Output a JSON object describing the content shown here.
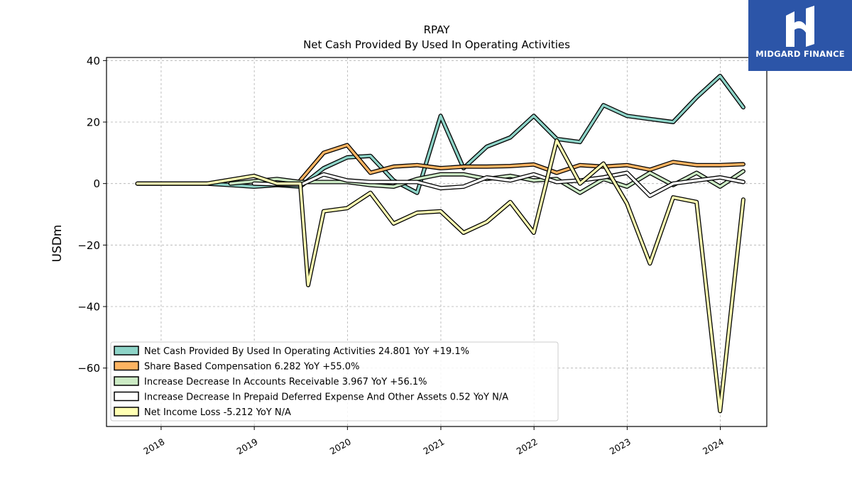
{
  "brand": {
    "name": "MIDGARD FINANCE"
  },
  "chart_data": {
    "type": "line",
    "title": "RPAY",
    "subtitle": "Net Cash Provided By Used In Operating Activities",
    "xlabel": "",
    "ylabel": "USDm",
    "xlim": [
      "2017-06-01",
      "2024-07-01"
    ],
    "ylim": [
      -79,
      41
    ],
    "yticks": [
      40,
      20,
      0,
      -20,
      -40,
      -60
    ],
    "ytick_labels": [
      "40",
      "20",
      "0",
      "−20",
      "−40",
      "−60"
    ],
    "xticks": [
      "2018-01-01",
      "2019-01-01",
      "2020-01-01",
      "2021-01-01",
      "2022-01-01",
      "2023-01-01",
      "2024-01-01"
    ],
    "xtick_labels": [
      "2018",
      "2019",
      "2020",
      "2021",
      "2022",
      "2023",
      "2024"
    ],
    "grid": true,
    "legend_position": "lower-left",
    "series": [
      {
        "name": "Net Cash Provided By Used In Operating Activities",
        "legend": "Net Cash Provided By Used In Operating Activities  24.801 YoY +19.1%",
        "color": "#8dd3c7",
        "points": [
          [
            "2017-09-30",
            0
          ],
          [
            "2018-06-30",
            0
          ],
          [
            "2018-09-30",
            -0.5
          ],
          [
            "2018-12-31",
            -1
          ],
          [
            "2019-03-31",
            -0.5
          ],
          [
            "2019-06-30",
            -1
          ],
          [
            "2019-09-30",
            5
          ],
          [
            "2019-12-31",
            8.5
          ],
          [
            "2020-03-31",
            9
          ],
          [
            "2020-06-30",
            1
          ],
          [
            "2020-09-30",
            -3
          ],
          [
            "2020-12-31",
            22
          ],
          [
            "2021-03-31",
            5
          ],
          [
            "2021-06-30",
            12
          ],
          [
            "2021-09-30",
            15
          ],
          [
            "2021-12-31",
            22
          ],
          [
            "2022-03-31",
            14.5
          ],
          [
            "2022-06-30",
            13.5
          ],
          [
            "2022-09-30",
            25.5
          ],
          [
            "2022-12-31",
            22
          ],
          [
            "2023-03-31",
            21
          ],
          [
            "2023-06-30",
            20
          ],
          [
            "2023-09-30",
            28
          ],
          [
            "2023-12-31",
            35
          ],
          [
            "2024-03-31",
            24.8
          ]
        ]
      },
      {
        "name": "Share Based Compensation",
        "legend": "Share Based Compensation  6.282 YoY +55.0%",
        "color": "#fdb462",
        "points": [
          [
            "2019-06-30",
            1
          ],
          [
            "2019-09-30",
            10
          ],
          [
            "2019-12-31",
            12.5
          ],
          [
            "2020-03-31",
            3.5
          ],
          [
            "2020-06-30",
            5.5
          ],
          [
            "2020-09-30",
            6
          ],
          [
            "2020-12-31",
            5
          ],
          [
            "2021-03-31",
            5.5
          ],
          [
            "2021-06-30",
            5.5
          ],
          [
            "2021-09-30",
            5.7
          ],
          [
            "2021-12-31",
            6.2
          ],
          [
            "2022-03-31",
            3.5
          ],
          [
            "2022-06-30",
            6
          ],
          [
            "2022-09-30",
            5.5
          ],
          [
            "2022-12-31",
            6
          ],
          [
            "2023-03-31",
            4.5
          ],
          [
            "2023-06-30",
            7
          ],
          [
            "2023-09-30",
            6
          ],
          [
            "2023-12-31",
            6
          ],
          [
            "2024-03-31",
            6.3
          ]
        ]
      },
      {
        "name": "Increase Decrease In Accounts Receivable",
        "legend": "Increase Decrease In Accounts Receivable  3.967 YoY +56.1%",
        "color": "#ccebc5",
        "points": [
          [
            "2018-09-30",
            0
          ],
          [
            "2019-03-31",
            1.5
          ],
          [
            "2019-06-30",
            0.5
          ],
          [
            "2019-09-30",
            0.5
          ],
          [
            "2019-12-31",
            0.5
          ],
          [
            "2020-03-31",
            -0.5
          ],
          [
            "2020-06-30",
            -1
          ],
          [
            "2020-09-30",
            1.5
          ],
          [
            "2020-12-31",
            3
          ],
          [
            "2021-03-31",
            3
          ],
          [
            "2021-06-30",
            1.5
          ],
          [
            "2021-09-30",
            2.5
          ],
          [
            "2021-12-31",
            1
          ],
          [
            "2022-03-31",
            1.5
          ],
          [
            "2022-06-30",
            -3
          ],
          [
            "2022-09-30",
            1.5
          ],
          [
            "2022-12-31",
            -1
          ],
          [
            "2023-03-31",
            3.5
          ],
          [
            "2023-06-30",
            -0.5
          ],
          [
            "2023-09-30",
            3.5
          ],
          [
            "2023-12-31",
            -1
          ],
          [
            "2024-03-31",
            4
          ]
        ]
      },
      {
        "name": "Increase Decrease In Prepaid Deferred Expense And Other Assets",
        "legend": "Increase Decrease In Prepaid Deferred Expense And Other Assets  0.52 YoY N/A",
        "color": "#ffffff",
        "points": [
          [
            "2018-12-31",
            0
          ],
          [
            "2019-06-30",
            -0.5
          ],
          [
            "2019-09-30",
            3
          ],
          [
            "2019-12-31",
            1
          ],
          [
            "2020-03-31",
            0.5
          ],
          [
            "2020-06-30",
            0.5
          ],
          [
            "2020-09-30",
            0.5
          ],
          [
            "2020-12-31",
            -1.5
          ],
          [
            "2021-03-31",
            -1
          ],
          [
            "2021-06-30",
            2
          ],
          [
            "2021-09-30",
            1
          ],
          [
            "2021-12-31",
            3
          ],
          [
            "2022-03-31",
            0.5
          ],
          [
            "2022-06-30",
            1
          ],
          [
            "2022-09-30",
            2
          ],
          [
            "2022-12-31",
            3.5
          ],
          [
            "2023-03-31",
            -4
          ],
          [
            "2023-06-30",
            0
          ],
          [
            "2023-09-30",
            1
          ],
          [
            "2023-12-31",
            2
          ],
          [
            "2024-03-31",
            0.5
          ]
        ]
      },
      {
        "name": "Net Income Loss",
        "legend": "Net Income Loss  -5.212 YoY N/A",
        "color": "#ffffb3",
        "points": [
          [
            "2017-09-30",
            0
          ],
          [
            "2018-06-30",
            0
          ],
          [
            "2018-12-31",
            2.5
          ],
          [
            "2019-03-31",
            0
          ],
          [
            "2019-06-30",
            0
          ],
          [
            "2019-07-31",
            -33
          ],
          [
            "2019-09-30",
            -9
          ],
          [
            "2019-12-31",
            -8
          ],
          [
            "2020-03-31",
            -3
          ],
          [
            "2020-06-30",
            -13
          ],
          [
            "2020-09-30",
            -9.5
          ],
          [
            "2020-12-31",
            -9
          ],
          [
            "2021-03-31",
            -16
          ],
          [
            "2021-06-30",
            -12.5
          ],
          [
            "2021-09-30",
            -6
          ],
          [
            "2021-12-31",
            -16
          ],
          [
            "2022-03-31",
            14
          ],
          [
            "2022-06-30",
            0
          ],
          [
            "2022-09-30",
            6.5
          ],
          [
            "2022-12-31",
            -6.5
          ],
          [
            "2023-03-31",
            -26
          ],
          [
            "2023-06-30",
            -4.5
          ],
          [
            "2023-09-30",
            -6
          ],
          [
            "2023-12-31",
            -74
          ],
          [
            "2024-03-31",
            -5.2
          ]
        ]
      }
    ]
  }
}
